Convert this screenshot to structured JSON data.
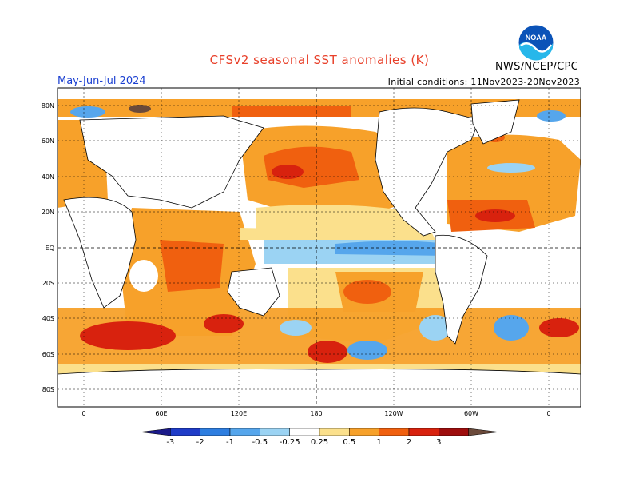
{
  "title": "CFSv2 seasonal SST anomalies (K)",
  "period": "May-Jun-Jul 2024",
  "initial_conditions": "Initial conditions: 11Nov2023-20Nov2023",
  "agency": "NWS/NCEP/CPC",
  "logo_text": "NOAA",
  "lat_labels": [
    "80N",
    "60N",
    "40N",
    "20N",
    "EQ",
    "20S",
    "40S",
    "60S",
    "80S"
  ],
  "lon_labels": [
    "0",
    "60E",
    "120E",
    "180",
    "120W",
    "60W",
    "0"
  ],
  "colorbar": {
    "labels": [
      "-3",
      "-2",
      "-1",
      "-0.5",
      "-0.25",
      "0.25",
      "0.5",
      "1",
      "2",
      "3"
    ],
    "colors": [
      "#1b1a8a",
      "#1f3cc8",
      "#2e7ee0",
      "#56a6ec",
      "#9bd3f3",
      "#ffffff",
      "#fbe08c",
      "#f7a12a",
      "#f0600f",
      "#d8220e",
      "#9e0d0d",
      "#6b4a3a"
    ]
  },
  "chart_data": {
    "type": "heatmap",
    "title": "CFSv2 seasonal SST anomalies (K)",
    "variable": "SST anomaly",
    "units": "K",
    "period": "May-Jun-Jul 2024",
    "lat_range": [
      -90,
      90
    ],
    "lon_range": [
      -20,
      360
    ]
  }
}
